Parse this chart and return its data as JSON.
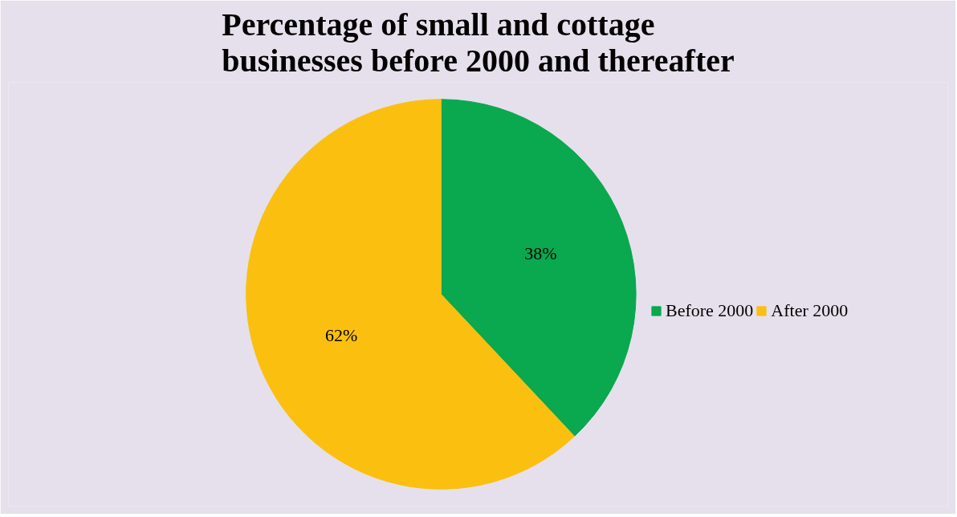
{
  "chart_data": {
    "type": "pie",
    "title": "Percentage of small and cottage businesses before 2000 and thereafter",
    "categories": [
      "Before 2000",
      "After 2000"
    ],
    "values": [
      38,
      62
    ],
    "colors": [
      "#0aa84f",
      "#fbbf10"
    ],
    "value_labels": [
      "38%",
      "62%"
    ],
    "legend": "right"
  }
}
